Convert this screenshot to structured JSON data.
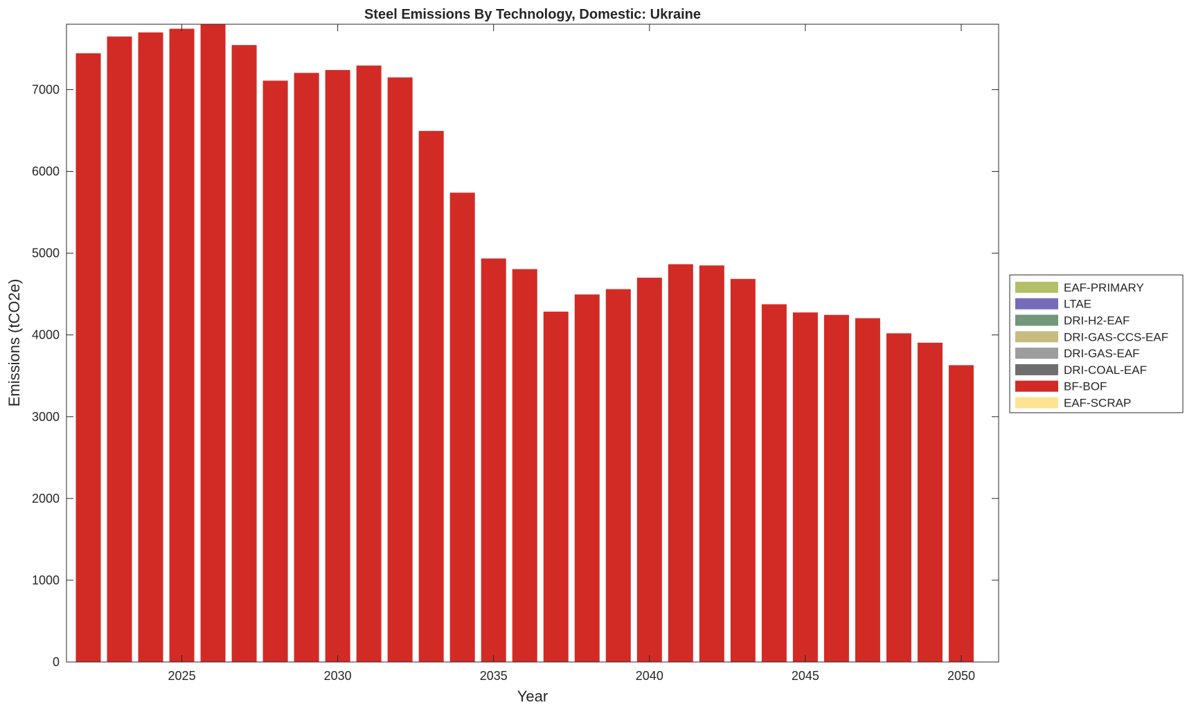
{
  "chart_data": {
    "type": "bar",
    "title": "Steel Emissions By Technology, Domestic: Ukraine",
    "xlabel": "Year",
    "ylabel": "Emissions (tCO2e)",
    "xlim": [
      2021.3,
      2051.2
    ],
    "ylim": [
      0,
      7800
    ],
    "x_ticks": [
      2025,
      2030,
      2035,
      2040,
      2045,
      2050
    ],
    "y_ticks": [
      0,
      1000,
      2000,
      3000,
      4000,
      5000,
      6000,
      7000
    ],
    "grid": false,
    "legend_position": "outside-right",
    "categories": [
      2022,
      2023,
      2024,
      2025,
      2026,
      2027,
      2028,
      2029,
      2030,
      2031,
      2032,
      2033,
      2034,
      2035,
      2036,
      2037,
      2038,
      2039,
      2040,
      2041,
      2042,
      2043,
      2044,
      2045,
      2046,
      2047,
      2048,
      2049,
      2050
    ],
    "series": [
      {
        "name": "EAF-PRIMARY",
        "color": "#b5bf6a",
        "values": [
          0,
          0,
          0,
          0,
          0,
          0,
          0,
          0,
          0,
          0,
          0,
          0,
          0,
          0,
          0,
          0,
          0,
          0,
          0,
          0,
          0,
          0,
          0,
          0,
          0,
          0,
          0,
          0,
          0
        ]
      },
      {
        "name": "LTAE",
        "color": "#756bb9",
        "values": [
          0,
          0,
          0,
          0,
          0,
          0,
          0,
          0,
          0,
          0,
          0,
          0,
          0,
          0,
          0,
          0,
          0,
          0,
          0,
          0,
          0,
          0,
          0,
          0,
          0,
          0,
          0,
          0,
          0
        ]
      },
      {
        "name": "DRI-H2-EAF",
        "color": "#72977a",
        "values": [
          0,
          0,
          0,
          0,
          0,
          0,
          0,
          0,
          0,
          0,
          0,
          0,
          0,
          0,
          0,
          0,
          0,
          0,
          0,
          0,
          0,
          0,
          0,
          0,
          0,
          0,
          0,
          0,
          0
        ]
      },
      {
        "name": "DRI-GAS-CCS-EAF",
        "color": "#c6bc7f",
        "values": [
          0,
          0,
          0,
          0,
          0,
          0,
          0,
          0,
          0,
          0,
          0,
          0,
          0,
          0,
          0,
          0,
          0,
          0,
          0,
          0,
          0,
          0,
          0,
          0,
          0,
          0,
          0,
          0,
          0
        ]
      },
      {
        "name": "DRI-GAS-EAF",
        "color": "#9d9d9d",
        "values": [
          0,
          0,
          0,
          0,
          0,
          0,
          0,
          0,
          0,
          0,
          0,
          0,
          0,
          0,
          0,
          0,
          0,
          0,
          0,
          0,
          0,
          0,
          0,
          0,
          0,
          0,
          0,
          0,
          0
        ]
      },
      {
        "name": "DRI-COAL-EAF",
        "color": "#6e6e6e",
        "values": [
          0,
          0,
          0,
          0,
          0,
          0,
          0,
          0,
          0,
          0,
          0,
          0,
          0,
          0,
          0,
          0,
          0,
          0,
          0,
          0,
          0,
          0,
          0,
          0,
          0,
          0,
          0,
          0,
          0
        ]
      },
      {
        "name": "BF-BOF",
        "color": "#d22b26",
        "values": [
          7445,
          7650,
          7700,
          7745,
          7800,
          7545,
          7110,
          7205,
          7240,
          7295,
          7150,
          6495,
          5740,
          4935,
          4805,
          4285,
          4495,
          4560,
          4700,
          4865,
          4850,
          4685,
          4375,
          4275,
          4245,
          4205,
          4020,
          3905,
          3630
        ]
      },
      {
        "name": "EAF-SCRAP",
        "color": "#fde493",
        "values": [
          0,
          0,
          0,
          0,
          0,
          0,
          0,
          0,
          0,
          0,
          0,
          0,
          0,
          0,
          0,
          0,
          0,
          0,
          0,
          0,
          0,
          0,
          0,
          0,
          0,
          0,
          0,
          0,
          0
        ]
      }
    ]
  }
}
